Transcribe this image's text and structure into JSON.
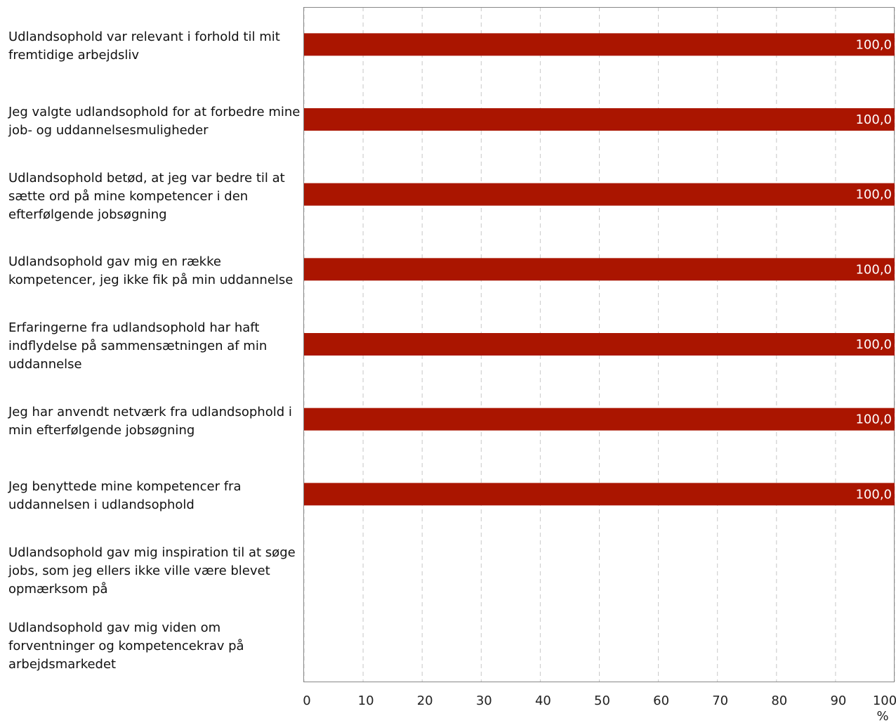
{
  "chart_data": {
    "type": "barh",
    "categories": [
      "Udlandsophold var relevant i forhold til mit fremtidige arbejdsliv",
      "Jeg valgte udlandsophold for at forbedre mine job- og uddannelsesmuligheder",
      "Udlandsophold betød, at jeg var bedre til at sætte ord på mine kompetencer i den efterfølgende jobsøgning",
      "Udlandsophold gav mig en række kompetencer, jeg ikke fik på min uddannelse",
      "Erfaringerne fra udlandsophold har haft indflydelse på sammensætningen af min uddannelse",
      "Jeg har anvendt netværk fra udlandsophold i min efterfølgende jobsøgning",
      "Jeg benyttede mine kompetencer fra uddannelsen i udlandsophold",
      "Udlandsophold gav mig inspiration til at søge jobs, som jeg ellers ikke ville være blevet opmærksom på",
      "Udlandsophold gav mig viden om forventninger og kompetencekrav på arbejdsmarkedet"
    ],
    "values": [
      100,
      100,
      100,
      100,
      100,
      100,
      100,
      null,
      null
    ],
    "value_labels": [
      "100,0",
      "100,0",
      "100,0",
      "100,0",
      "100,0",
      "100,0",
      "100,0",
      null,
      null
    ],
    "color": "#aa1500",
    "xlabel": "%",
    "xlim": [
      0,
      100
    ],
    "xticks": [
      0,
      10,
      20,
      30,
      40,
      50,
      60,
      70,
      80,
      90,
      100
    ],
    "grid": true
  }
}
